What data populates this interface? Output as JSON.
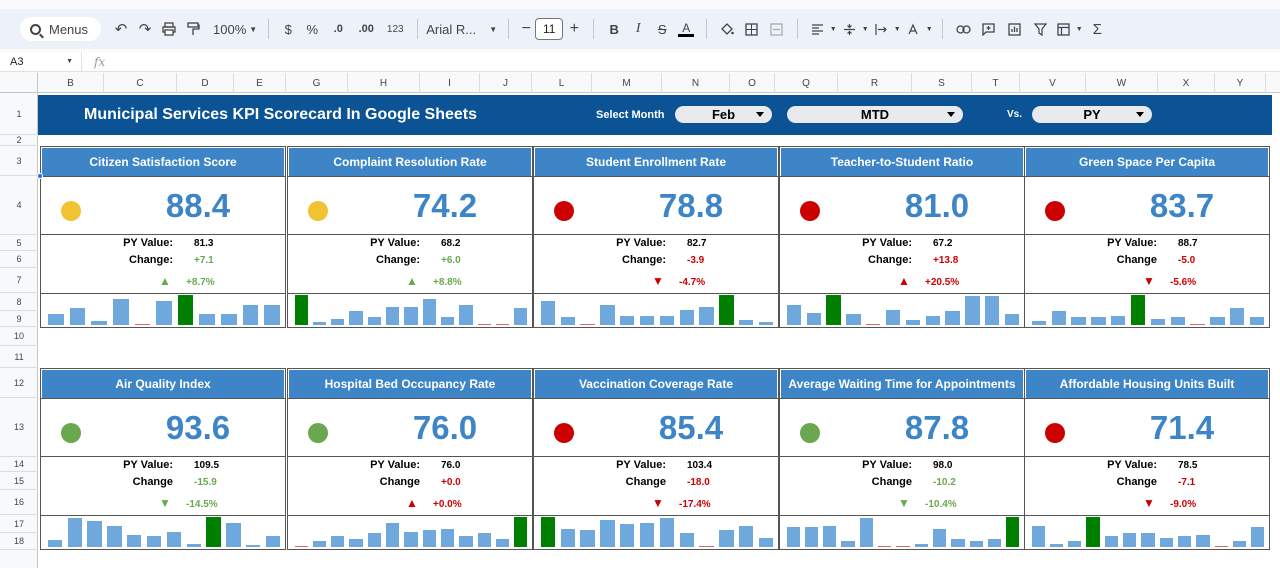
{
  "toolbar": {
    "menus_label": "Menus",
    "zoom": "100%",
    "currency": "$",
    "percent": "%",
    "dec_dec": ".0",
    "inc_dec": ".00",
    "number_format": "123",
    "font_name": "Arial R...",
    "font_size": "11"
  },
  "formula_bar": {
    "cell_ref": "A3",
    "fx": "fx",
    "value": ""
  },
  "columns": [
    "B",
    "C",
    "D",
    "E",
    "G",
    "H",
    "I",
    "J",
    "L",
    "M",
    "N",
    "O",
    "Q",
    "R",
    "S",
    "T",
    "V",
    "W",
    "X",
    "Y"
  ],
  "rows": [
    "1",
    "2",
    "3",
    "4",
    "5",
    "6",
    "7",
    "8",
    "9",
    "10",
    "11",
    "12",
    "13",
    "14",
    "15",
    "16",
    "17",
    "18"
  ],
  "banner": {
    "title": "Municipal Services KPI Scorecard In Google Sheets",
    "select_month_label": "Select Month",
    "month": "Feb",
    "period": "MTD",
    "vs_label": "Vs.",
    "compare": "PY"
  },
  "colors": {
    "banner": "#0b5394",
    "card_header": "#3d85c6",
    "yellow": "#f1c232",
    "red": "#cc0000",
    "green": "#6aa84f",
    "bar_blue": "#6fa8dc",
    "bar_green": "#008000"
  },
  "cards": [
    {
      "title": "Citizen Satisfaction Score",
      "value": "88.4",
      "status": "yellow",
      "py_label": "PY Value:",
      "py_value": "81.3",
      "change_label": "Change:",
      "change": "+7.1",
      "pct": "+8.7%",
      "direction": "up",
      "spark": [
        0.35,
        0.55,
        0.12,
        0.85,
        0.03,
        0.8,
        1.0,
        0.35,
        0.35,
        0.65,
        0.65
      ],
      "highlight": 6
    },
    {
      "title": "Complaint Resolution Rate",
      "value": "74.2",
      "status": "yellow",
      "py_label": "PY Value:",
      "py_value": "68.2",
      "change_label": "Change:",
      "change": "+6.0",
      "pct": "+8.8%",
      "direction": "up",
      "spark": [
        1.0,
        0.1,
        0.2,
        0.45,
        0.25,
        0.6,
        0.6,
        0.85,
        0.25,
        0.65,
        0.03,
        0.03,
        0.55
      ],
      "highlight": 0
    },
    {
      "title": "Student Enrollment Rate",
      "value": "78.8",
      "status": "red",
      "py_label": "PY Value:",
      "py_value": "82.7",
      "change_label": "Change:",
      "change": "-3.9",
      "pct": "-4.7%",
      "direction": "down",
      "spark": [
        0.8,
        0.25,
        0.03,
        0.65,
        0.3,
        0.3,
        0.3,
        0.5,
        0.6,
        1.0,
        0.15,
        0.1
      ],
      "highlight": 9
    },
    {
      "title": "Teacher-to-Student Ratio",
      "value": "81.0",
      "status": "red",
      "py_label": "PY Value:",
      "py_value": "67.2",
      "change_label": "Change:",
      "change": "+13.8",
      "pct": "+20.5%",
      "direction": "up",
      "spark": [
        0.65,
        0.4,
        1.0,
        0.35,
        0.03,
        0.5,
        0.15,
        0.3,
        0.45,
        0.95,
        0.95,
        0.35
      ],
      "highlight": 2
    },
    {
      "title": "Green Space Per Capita",
      "value": "83.7",
      "status": "red",
      "py_label": "PY Value:",
      "py_value": "88.7",
      "change_label": "Change",
      "change": "-5.0",
      "pct": "-5.6%",
      "direction": "down",
      "spark": [
        0.12,
        0.45,
        0.25,
        0.25,
        0.3,
        1.0,
        0.2,
        0.25,
        0.03,
        0.25,
        0.55,
        0.25
      ],
      "highlight": 5
    },
    {
      "title": "Air Quality Index",
      "value": "93.6",
      "status": "green",
      "py_label": "PY Value:",
      "py_value": "109.5",
      "change_label": "Change",
      "change": "-15.9",
      "pct": "-14.5%",
      "direction": "down",
      "spark": [
        0.22,
        0.95,
        0.85,
        0.7,
        0.4,
        0.35,
        0.5,
        0.1,
        1.0,
        0.8,
        0.05,
        0.35
      ],
      "highlight": 8
    },
    {
      "title": "Hospital Bed Occupancy Rate",
      "value": "76.0",
      "status": "green",
      "py_label": "PY Value:",
      "py_value": "76.0",
      "change_label": "Change",
      "change": "+0.0",
      "pct": "+0.0%",
      "direction": "up",
      "spark": [
        0.03,
        0.2,
        0.35,
        0.25,
        0.45,
        0.8,
        0.5,
        0.55,
        0.6,
        0.35,
        0.45,
        0.25,
        1.0
      ],
      "highlight": 12
    },
    {
      "title": "Vaccination Coverage Rate",
      "value": "85.4",
      "status": "red",
      "py_label": "PY Value:",
      "py_value": "103.4",
      "change_label": "Change",
      "change": "-18.0",
      "pct": "-17.4%",
      "direction": "down",
      "spark": [
        1.0,
        0.6,
        0.55,
        0.9,
        0.75,
        0.8,
        0.95,
        0.45,
        0.03,
        0.55,
        0.7,
        0.3
      ],
      "highlight": 0
    },
    {
      "title": "Average Waiting Time for Appointments",
      "value": "87.8",
      "status": "green",
      "py_label": "PY Value:",
      "py_value": "98.0",
      "change_label": "Change",
      "change": "-10.2",
      "pct": "-10.4%",
      "direction": "down",
      "spark": [
        0.65,
        0.65,
        0.7,
        0.2,
        0.95,
        0.03,
        0.03,
        0.1,
        0.6,
        0.25,
        0.2,
        0.25,
        1.0
      ],
      "highlight": 12
    },
    {
      "title": "Affordable Housing Units Built",
      "value": "71.4",
      "status": "red",
      "py_label": "PY Value:",
      "py_value": "78.5",
      "change_label": "Change",
      "change": "-7.1",
      "pct": "-9.0%",
      "direction": "down",
      "spark": [
        0.7,
        0.1,
        0.2,
        1.0,
        0.35,
        0.45,
        0.45,
        0.3,
        0.35,
        0.4,
        0.03,
        0.2,
        0.65
      ],
      "highlight": 3
    }
  ]
}
